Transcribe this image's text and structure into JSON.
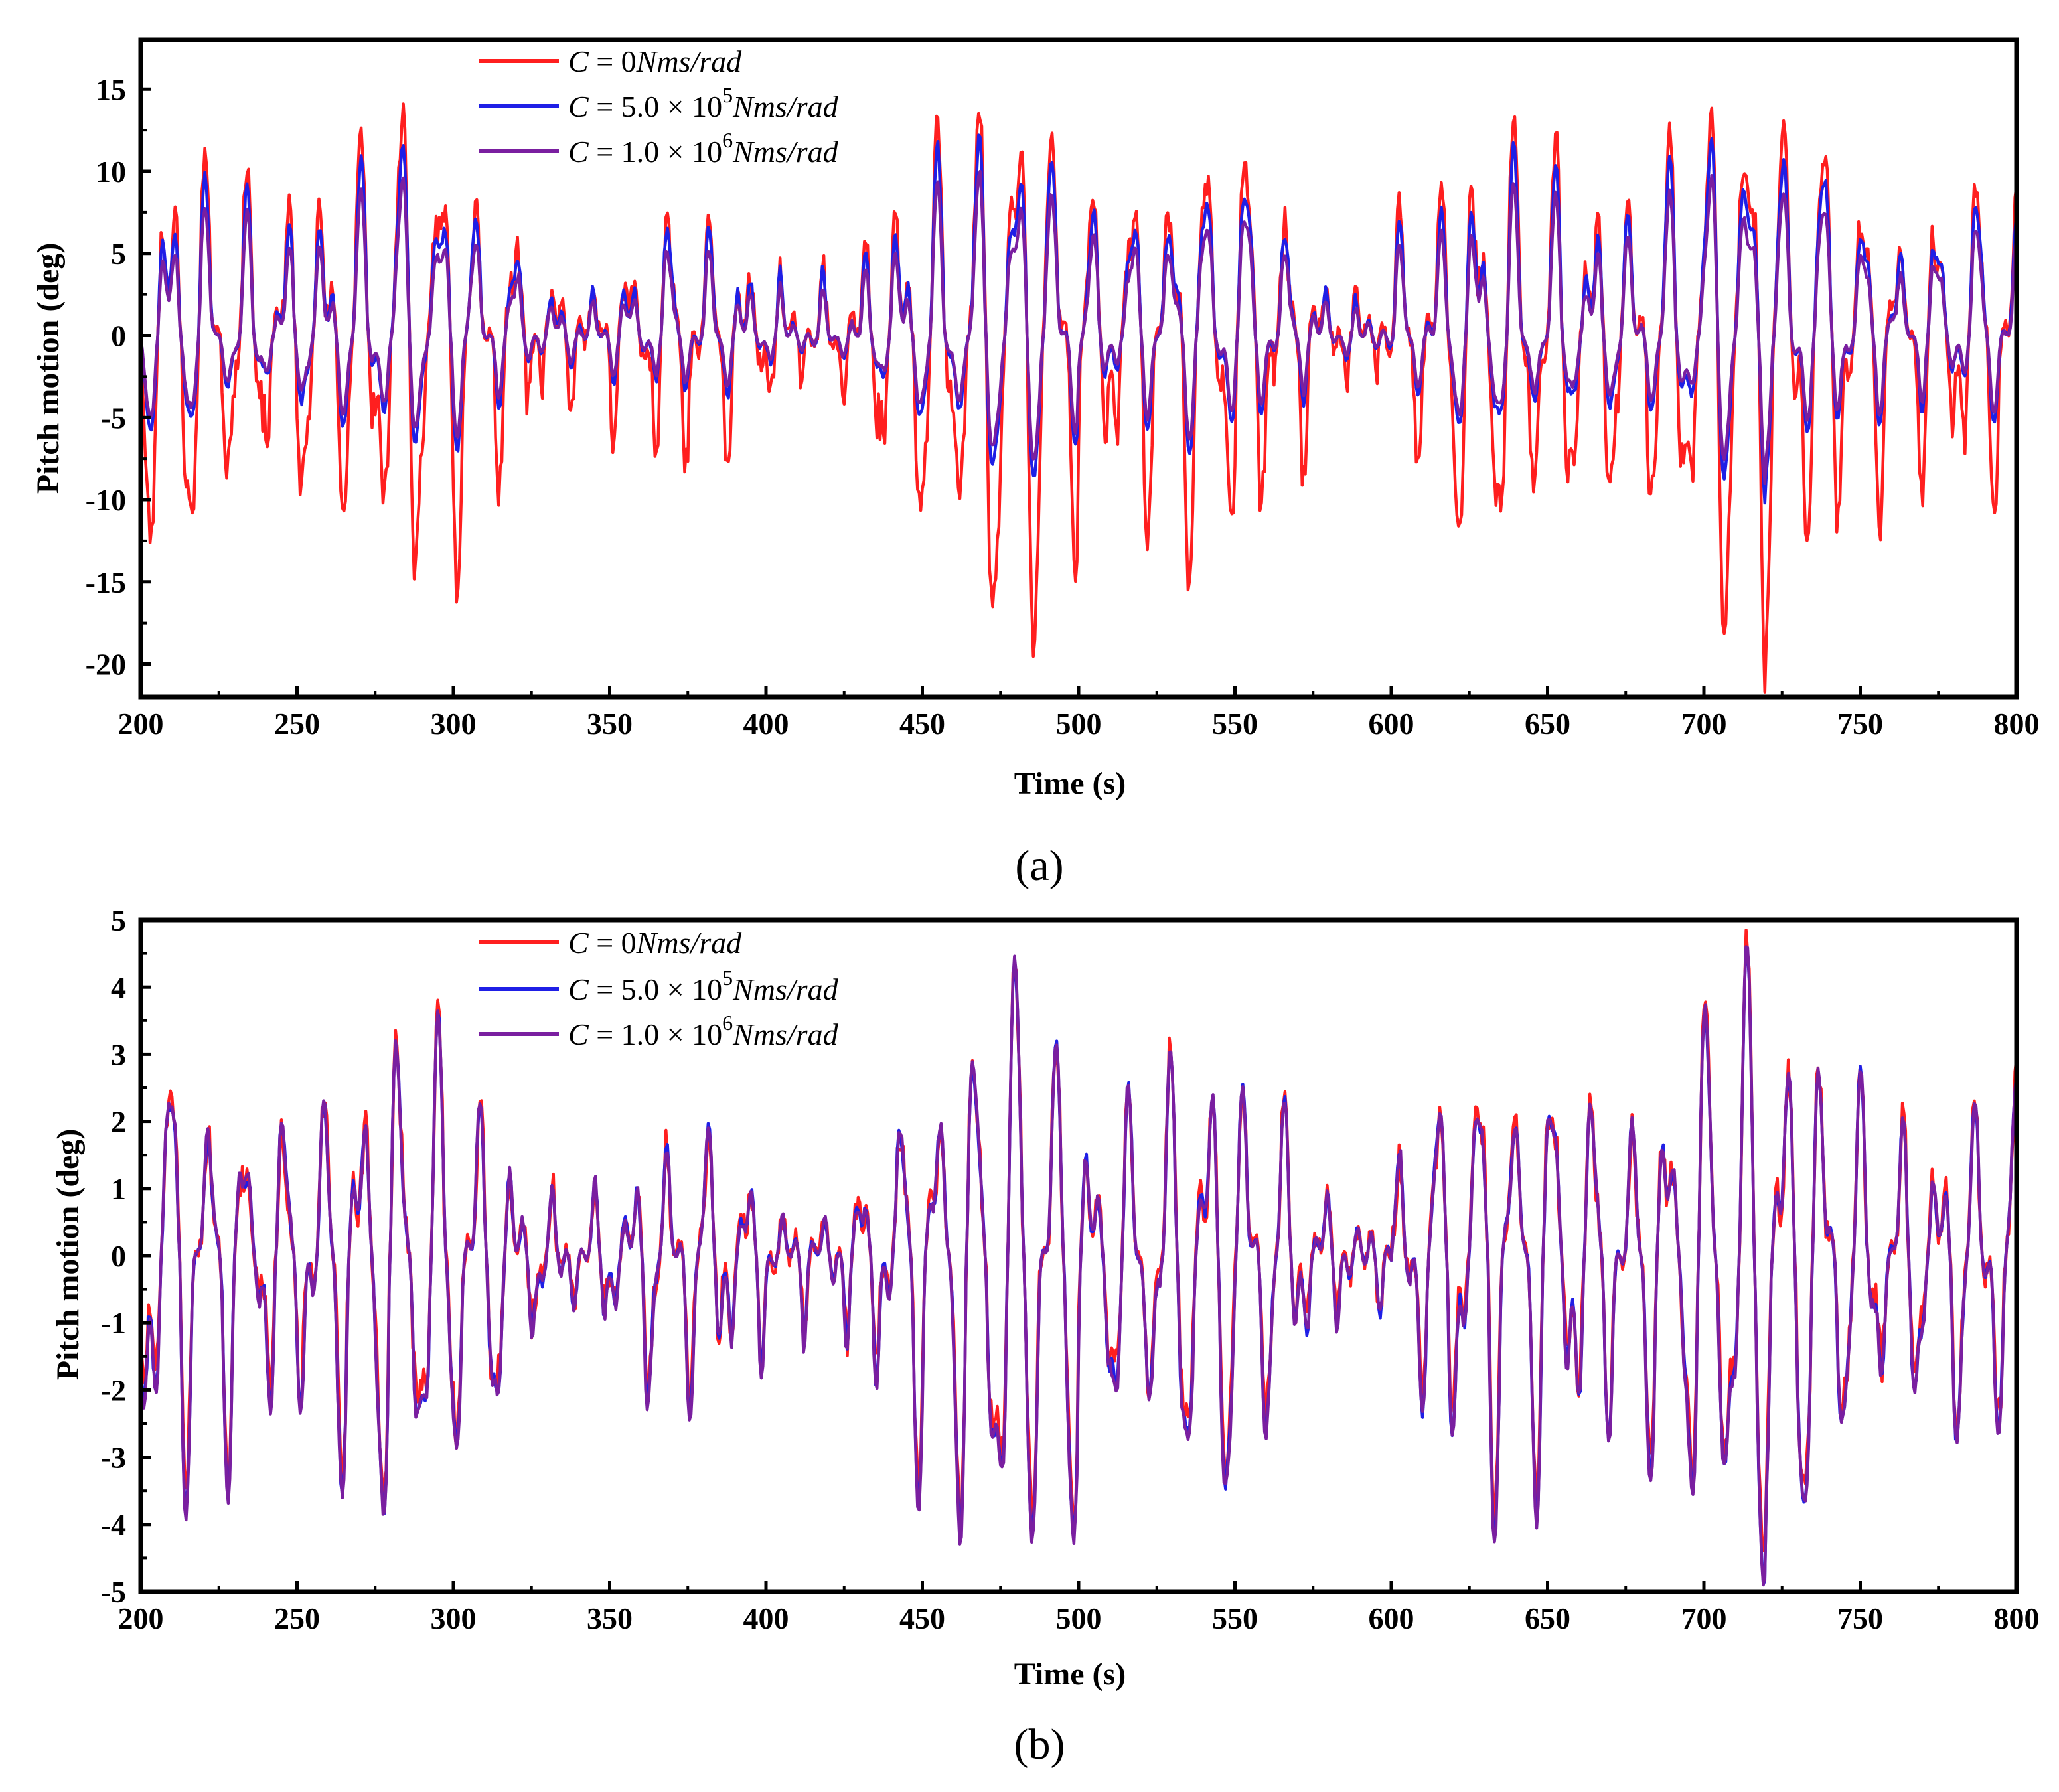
{
  "chart_data": [
    {
      "type": "line",
      "panel_label": "(a)",
      "xlabel": "Time (s)",
      "ylabel": "Pitch motion (deg)",
      "xlim": [
        200,
        800
      ],
      "ylim": [
        -22,
        18
      ],
      "xticks": [
        200,
        250,
        300,
        350,
        400,
        450,
        500,
        550,
        600,
        650,
        700,
        750,
        800
      ],
      "yticks": [
        -20,
        -15,
        -10,
        -5,
        0,
        5,
        10,
        15
      ],
      "legend_position": "top-left",
      "series": [
        {
          "name": "C = 0Nms/rad",
          "color": "#ff1f1f",
          "peak_max": 13.8,
          "peak_min": -22.0,
          "typical_amplitude": 6.5,
          "mean": 0.3
        },
        {
          "name": "C = 5.0 × 10^5 Nms/rad",
          "color": "#1f1fe6",
          "peak_max": 12.2,
          "peak_min": -10.2,
          "typical_amplitude": 4.2,
          "mean": 0.0
        },
        {
          "name": "C = 1.0 × 10^6 Nms/rad",
          "color": "#7a1fa0",
          "peak_max": 10.0,
          "peak_min": -9.0,
          "typical_amplitude": 3.8,
          "mean": 0.0
        }
      ]
    },
    {
      "type": "line",
      "panel_label": "(b)",
      "xlabel": "Time (s)",
      "ylabel": "Pitch motion (deg)",
      "xlim": [
        200,
        800
      ],
      "ylim": [
        -5,
        5
      ],
      "xticks": [
        200,
        250,
        300,
        350,
        400,
        450,
        500,
        550,
        600,
        650,
        700,
        750,
        800
      ],
      "yticks": [
        -5,
        -4,
        -3,
        -2,
        -1,
        0,
        1,
        2,
        3,
        4,
        5
      ],
      "legend_position": "top-left",
      "series": [
        {
          "name": "C = 0Nms/rad",
          "color": "#ff1f1f",
          "peak_max": 4.85,
          "peak_min": -4.4,
          "typical_amplitude": 1.8,
          "mean": 0.0
        },
        {
          "name": "C = 5.0 × 10^5 Nms/rad",
          "color": "#1f1fe6",
          "peak_max": 4.6,
          "peak_min": -4.9,
          "typical_amplitude": 1.7,
          "mean": 0.0
        },
        {
          "name": "C = 1.0 × 10^6 Nms/rad",
          "color": "#7a1fa0",
          "peak_max": 4.6,
          "peak_min": -4.9,
          "typical_amplitude": 1.7,
          "mean": 0.0
        }
      ]
    }
  ],
  "legend": {
    "c0": {
      "lhs": "C",
      "eq": "=",
      "value": "0",
      "unit": "Nms/rad"
    },
    "c5": {
      "lhs": "C",
      "eq": "=",
      "value": "5.0 × 10",
      "exp": "5",
      "unit": "Nms/rad"
    },
    "c1": {
      "lhs": "C",
      "eq": "=",
      "value": "1.0 × 10",
      "exp": "6",
      "unit": "Nms/rad"
    }
  },
  "captions": {
    "a": "(a)",
    "b": "(b)"
  }
}
